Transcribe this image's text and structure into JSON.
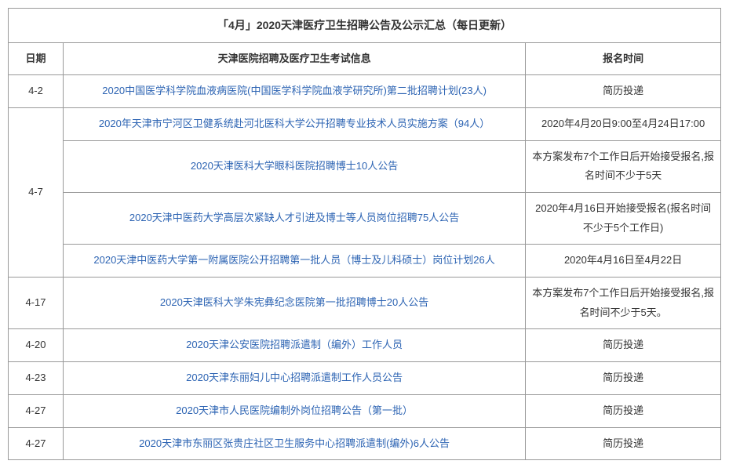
{
  "title": "「4月」2020天津医疗卫生招聘公告及公示汇总（每日更新）",
  "headers": {
    "date": "日期",
    "info": "天津医院招聘及医疗卫生考试信息",
    "time": "报名时间"
  },
  "rows": [
    {
      "date": "4-2",
      "info": "2020中国医学科学院血液病医院(中国医学科学院血液学研究所)第二批招聘计划(23人)",
      "time": "简历投递",
      "date_rowspan": 1
    },
    {
      "date": "4-7",
      "info": "2020年天津市宁河区卫健系统赴河北医科大学公开招聘专业技术人员实施方案（94人）",
      "time": "2020年4月20日9:00至4月24日17:00",
      "date_rowspan": 4
    },
    {
      "date": "",
      "info": "2020天津医科大学眼科医院招聘博士10人公告",
      "time": "本方案发布7个工作日后开始接受报名,报名时间不少于5天",
      "date_rowspan": 0
    },
    {
      "date": "",
      "info": "2020天津中医药大学高层次紧缺人才引进及博士等人员岗位招聘75人公告",
      "time": "2020年4月16日开始接受报名(报名时间不少于5个工作日)",
      "date_rowspan": 0
    },
    {
      "date": "",
      "info": "2020天津中医药大学第一附属医院公开招聘第一批人员（博士及儿科硕士）岗位计划26人",
      "time": "2020年4月16日至4月22日",
      "date_rowspan": 0
    },
    {
      "date": "4-17",
      "info": "2020天津医科大学朱宪彝纪念医院第一批招聘博士20人公告",
      "time": "本方案发布7个工作日后开始接受报名,报名时间不少于5天。",
      "date_rowspan": 1
    },
    {
      "date": "4-20",
      "info": "2020天津公安医院招聘派遣制（编外）工作人员",
      "time": "简历投递",
      "date_rowspan": 1
    },
    {
      "date": "4-23",
      "info": "2020天津东丽妇儿中心招聘派遣制工作人员公告",
      "time": "简历投递",
      "date_rowspan": 1
    },
    {
      "date": "4-27",
      "info": "2020天津市人民医院编制外岗位招聘公告（第一批）",
      "time": "简历投递",
      "date_rowspan": 1
    },
    {
      "date": "4-27",
      "info": "2020天津市东丽区张贵庄社区卫生服务中心招聘派遣制(编外)6人公告",
      "time": "简历投递",
      "date_rowspan": 1
    }
  ],
  "colors": {
    "link": "#2d64b3",
    "text": "#333333",
    "border": "#999999",
    "background": "#ffffff"
  }
}
